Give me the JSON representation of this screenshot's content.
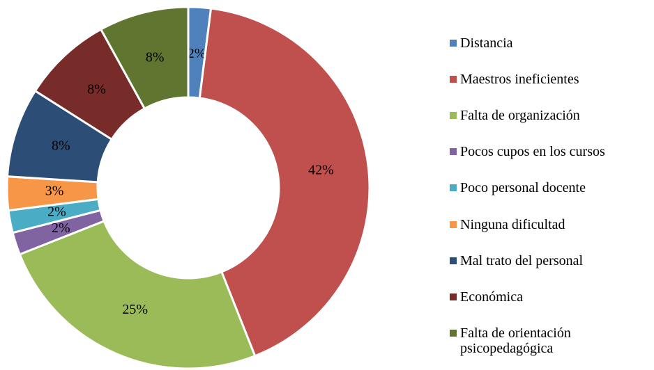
{
  "chart_data": {
    "type": "donut",
    "categories": [
      "Distancia",
      "Maestros ineficientes",
      "Falta de organización",
      "Pocos cupos en los cursos",
      "Poco personal docente",
      "Ninguna dificultad",
      "Mal trato del personal",
      "Económica",
      "Falta de orientación psicopedagógica"
    ],
    "values": [
      2,
      42,
      25,
      2,
      2,
      3,
      8,
      8,
      8
    ],
    "value_labels": [
      "2%",
      "42%",
      "25%",
      "2%",
      "2%",
      "3%",
      "8%",
      "8%",
      "8%"
    ],
    "colors": [
      "#4f81bd",
      "#c0504d",
      "#9bbb59",
      "#8064a2",
      "#4bacc6",
      "#f79646",
      "#2c4d75",
      "#772c2a",
      "#5f7530"
    ],
    "legend": "right"
  }
}
